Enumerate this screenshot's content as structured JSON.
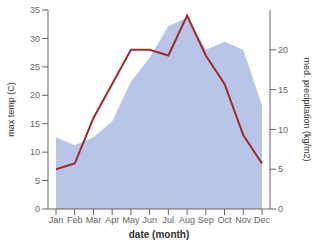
{
  "chart_data": {
    "type": "line",
    "categories": [
      "Jan",
      "Feb",
      "Mar",
      "Apr",
      "May",
      "Jun",
      "Jul",
      "Aug",
      "Sep",
      "Oct",
      "Nov",
      "Dec"
    ],
    "series": [
      {
        "type": "area",
        "axis": "y2",
        "color": "#b8c4e8",
        "values": [
          9,
          8,
          9,
          11,
          16,
          19,
          23,
          24,
          20,
          21,
          20,
          13
        ]
      },
      {
        "type": "line",
        "color": "#9e2a2a",
        "values": [
          7,
          8,
          16,
          22,
          28,
          28,
          27,
          34,
          27,
          22,
          13,
          8
        ]
      }
    ],
    "xlabel": "date (month)",
    "ylabel": "max temp (C)",
    "y2label": "med. precipitation (kg/m2)",
    "ylim": [
      0,
      35
    ],
    "yticks": [
      0,
      5,
      10,
      15,
      20,
      25,
      30,
      35
    ],
    "y2lim": [
      0,
      25
    ],
    "y2ticks": [
      0,
      5,
      10,
      15,
      20
    ],
    "grid": false
  }
}
